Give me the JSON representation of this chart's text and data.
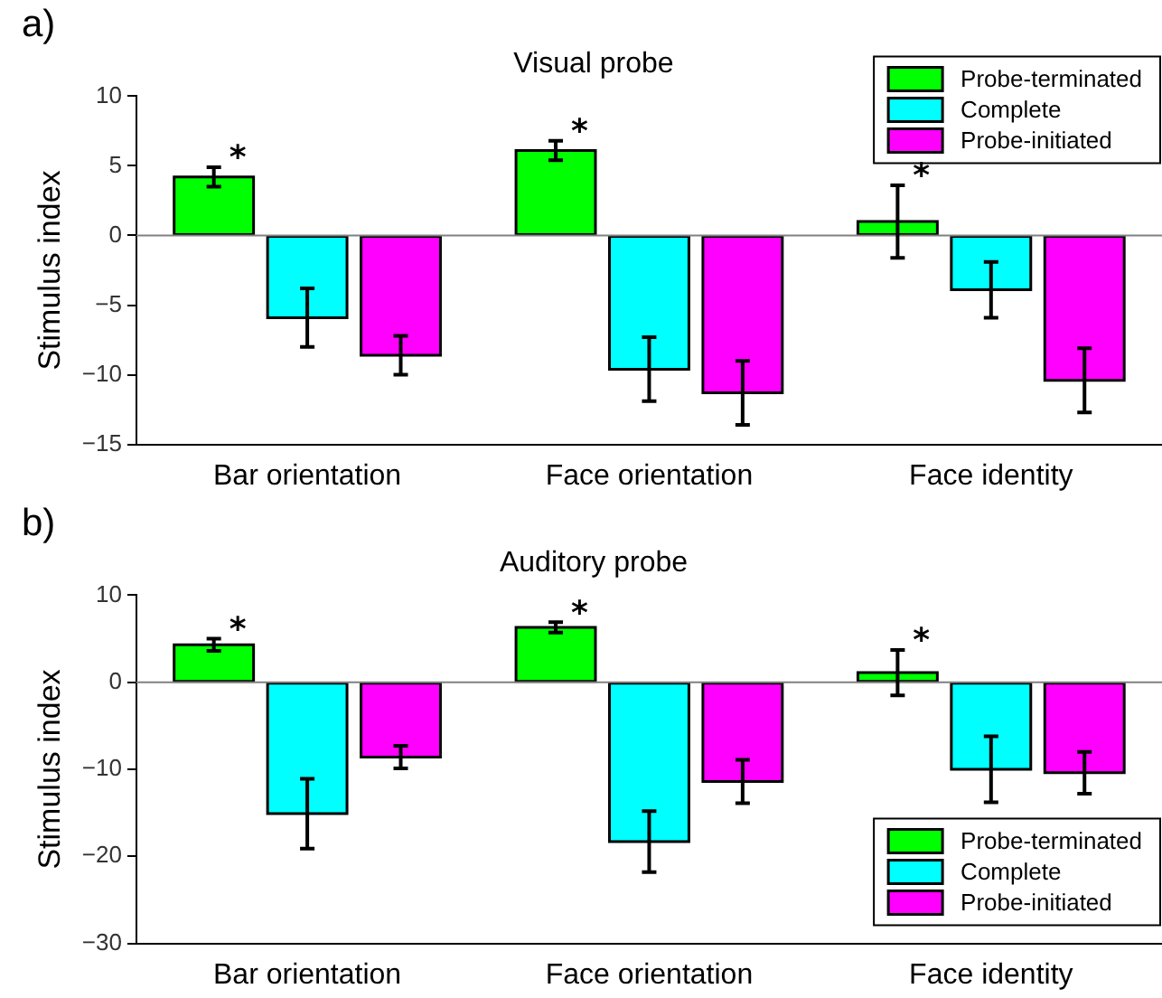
{
  "chart_data": [
    {
      "type": "bar",
      "title": "Visual probe",
      "ylabel": "Stimulus index",
      "categories": [
        "Bar orientation",
        "Face orientation",
        "Face identity"
      ],
      "series": [
        {
          "name": "Probe-terminated",
          "color": "#00ff00",
          "values": [
            4.2,
            6.1,
            1.0
          ],
          "errors": [
            0.7,
            0.7,
            2.6
          ]
        },
        {
          "name": "Complete",
          "color": "#00ffff",
          "values": [
            -5.9,
            -9.6,
            -3.9
          ],
          "errors": [
            2.1,
            2.3,
            2.0
          ]
        },
        {
          "name": "Probe-initiated",
          "color": "#ff00ff",
          "values": [
            -8.6,
            -11.3,
            -10.4
          ],
          "errors": [
            1.4,
            2.3,
            2.3
          ]
        }
      ],
      "ylim": [
        -15,
        10
      ],
      "yticks": [
        -15,
        -10,
        -5,
        0,
        5,
        10
      ],
      "ref_lines": [
        {
          "axis": "y",
          "value": 0,
          "color": "#808080"
        }
      ],
      "annotations": [
        "a)",
        "*",
        "*",
        "*"
      ],
      "legend": "top right",
      "grid": false
    },
    {
      "type": "bar",
      "title": "Auditory probe",
      "ylabel": "Stimulus index",
      "categories": [
        "Bar orientation",
        "Face orientation",
        "Face identity"
      ],
      "series": [
        {
          "name": "Probe-terminated",
          "color": "#00ff00",
          "values": [
            4.3,
            6.3,
            1.1
          ],
          "errors": [
            0.7,
            0.6,
            2.6
          ]
        },
        {
          "name": "Complete",
          "color": "#00ffff",
          "values": [
            -15.1,
            -18.3,
            -10.0
          ],
          "errors": [
            4.0,
            3.5,
            3.8
          ]
        },
        {
          "name": "Probe-initiated",
          "color": "#ff00ff",
          "values": [
            -8.6,
            -11.4,
            -10.4
          ],
          "errors": [
            1.3,
            2.5,
            2.4
          ]
        }
      ],
      "ylim": [
        -30,
        10
      ],
      "yticks": [
        -30,
        -20,
        -10,
        0,
        10
      ],
      "ref_lines": [
        {
          "axis": "y",
          "value": 0,
          "color": "#808080"
        }
      ],
      "annotations": [
        "b)",
        "*",
        "*",
        "*"
      ],
      "legend": "bottom right",
      "grid": false
    }
  ]
}
